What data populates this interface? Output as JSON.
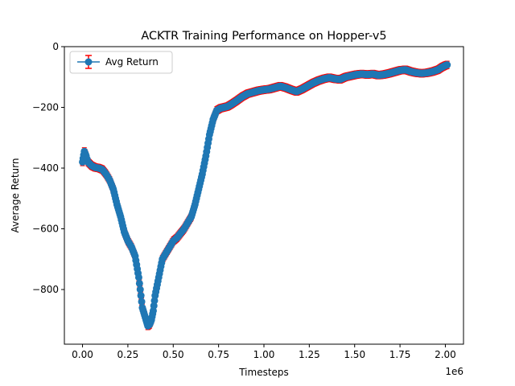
{
  "chart_data": {
    "type": "line",
    "title": "ACKTR Training Performance on Hopper-v5",
    "xlabel": "Timesteps",
    "ylabel": "Average Return",
    "x_offset_label": "1e6",
    "xlim": [
      -0.1,
      2.1
    ],
    "ylim": [
      -980,
      0
    ],
    "x_ticks": [
      0.0,
      0.25,
      0.5,
      0.75,
      1.0,
      1.25,
      1.5,
      1.75,
      2.0
    ],
    "x_tick_labels": [
      "0.00",
      "0.25",
      "0.50",
      "0.75",
      "1.00",
      "1.25",
      "1.50",
      "1.75",
      "2.00"
    ],
    "y_ticks": [
      -800,
      -600,
      -400,
      -200,
      0
    ],
    "y_tick_labels": [
      "−800",
      "−600",
      "−400",
      "−200",
      "0"
    ],
    "grid": false,
    "legend": {
      "position": "top-left",
      "entries": [
        "Avg Return"
      ]
    },
    "colors": {
      "line": "#1f77b4",
      "errorbar": "#ff0000"
    },
    "series": [
      {
        "name": "Avg Return",
        "error": 12,
        "x": [
          0.0,
          0.01,
          0.02,
          0.03,
          0.05,
          0.07,
          0.09,
          0.11,
          0.13,
          0.15,
          0.17,
          0.19,
          0.21,
          0.23,
          0.25,
          0.27,
          0.29,
          0.31,
          0.33,
          0.35,
          0.36,
          0.37,
          0.38,
          0.39,
          0.4,
          0.42,
          0.44,
          0.46,
          0.48,
          0.5,
          0.52,
          0.54,
          0.56,
          0.58,
          0.6,
          0.62,
          0.64,
          0.66,
          0.68,
          0.7,
          0.72,
          0.74,
          0.76,
          0.78,
          0.8,
          0.82,
          0.85,
          0.88,
          0.91,
          0.94,
          0.97,
          1.0,
          1.03,
          1.06,
          1.09,
          1.12,
          1.15,
          1.18,
          1.21,
          1.24,
          1.27,
          1.3,
          1.33,
          1.36,
          1.39,
          1.42,
          1.45,
          1.48,
          1.51,
          1.54,
          1.57,
          1.6,
          1.63,
          1.66,
          1.69,
          1.72,
          1.75,
          1.78,
          1.81,
          1.84,
          1.87,
          1.9,
          1.93,
          1.96,
          1.98,
          2.0,
          2.01
        ],
        "y": [
          -380,
          -345,
          -360,
          -380,
          -392,
          -398,
          -400,
          -405,
          -420,
          -440,
          -470,
          -520,
          -560,
          -610,
          -640,
          -660,
          -690,
          -760,
          -860,
          -900,
          -920,
          -915,
          -900,
          -870,
          -820,
          -760,
          -700,
          -680,
          -660,
          -640,
          -630,
          -615,
          -600,
          -580,
          -560,
          -520,
          -470,
          -420,
          -360,
          -290,
          -240,
          -210,
          -203,
          -200,
          -197,
          -190,
          -178,
          -165,
          -155,
          -150,
          -145,
          -142,
          -140,
          -135,
          -130,
          -135,
          -142,
          -148,
          -140,
          -130,
          -120,
          -112,
          -106,
          -102,
          -106,
          -108,
          -100,
          -96,
          -92,
          -90,
          -92,
          -90,
          -94,
          -92,
          -88,
          -83,
          -78,
          -76,
          -82,
          -86,
          -88,
          -86,
          -82,
          -76,
          -68,
          -62,
          -60
        ]
      }
    ]
  }
}
